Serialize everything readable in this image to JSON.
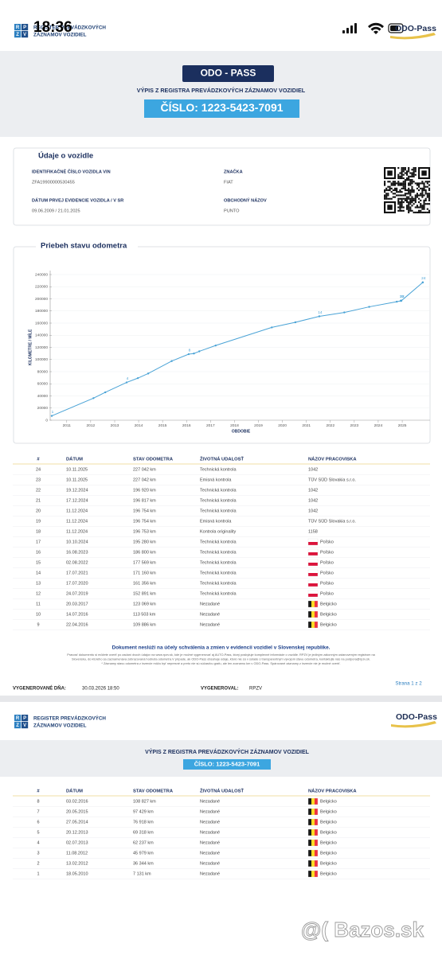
{
  "status_bar": {
    "time": "18:36"
  },
  "header": {
    "logo_letters": [
      "R",
      "P",
      "Z",
      "V"
    ],
    "logo_text": [
      "REGISTER PREVÁDZKOVÝCH",
      "ZÁZNAMOV VOZIDIEL"
    ],
    "brand": "ODO-Pass"
  },
  "banner": {
    "title": "ODO - PASS",
    "subtitle": "VÝPIS Z REGISTRA PREVÁDZKOVÝCH ZÁZNAMOV VOZIDIEL",
    "number": "ČÍSLO: 1223-5423-7091"
  },
  "vehicle": {
    "heading": "Údaje o vozidle",
    "fields": [
      {
        "label": "IDENTIFIKAČNÉ ČÍSLO VOZIDLA VIN",
        "value": "ZFA19900000530455"
      },
      {
        "label": "ZNAČKA",
        "value": "FIAT"
      },
      {
        "label": "DÁTUM PRVEJ EVIDENCIE VOZIDLA / V SR",
        "value": "09.06.2009 / 21.01.2025"
      },
      {
        "label": "OBCHODNÝ NÁZOV",
        "value": "PUNTO"
      }
    ]
  },
  "chart_data": {
    "type": "line",
    "title": "Priebeh stavu odometra",
    "y_label": "KILOMETRE / MÍLE",
    "x_label": "OBDOBIE",
    "color": "#4aa3d6",
    "grid": true,
    "x": [
      "2010-05-18",
      "2012-02-13",
      "2012-08-11",
      "2013-07-02",
      "2013-12-20",
      "2014-05-27",
      "2015-05-20",
      "2016-02-03",
      "2016-04-22",
      "2016-07-14",
      "2017-03-20",
      "2019-07-24",
      "2020-07-17",
      "2021-07-17",
      "2022-08-02",
      "2023-08-16",
      "2024-10-10",
      "2024-12-11",
      "2024-12-11",
      "2024-12-11",
      "2024-12-17",
      "2024-12-19",
      "2025-11-10",
      "2025-11-10"
    ],
    "values": [
      7131,
      36344,
      45979,
      62237,
      69318,
      76918,
      97429,
      108827,
      109886,
      113503,
      123069,
      152891,
      161356,
      171160,
      177569,
      186800,
      195280,
      196753,
      196754,
      196754,
      196817,
      196920,
      227042,
      227042
    ],
    "point_labels": [
      "1",
      null,
      null,
      "4",
      null,
      null,
      null,
      "8",
      null,
      null,
      null,
      null,
      null,
      "14",
      null,
      null,
      null,
      null,
      "19",
      null,
      null,
      "22",
      null,
      "24"
    ],
    "xlim": [
      "2010-05-18",
      "2026-03-01"
    ],
    "xticks": [
      {
        "value": "2011-01-01",
        "label": "2011"
      },
      {
        "value": "2012-01-01",
        "label": "2012"
      },
      {
        "value": "2013-01-01",
        "label": "2013"
      },
      {
        "value": "2014-01-01",
        "label": "2014"
      },
      {
        "value": "2015-01-01",
        "label": "2015"
      },
      {
        "value": "2016-01-01",
        "label": "2016"
      },
      {
        "value": "2017-01-01",
        "label": "2017"
      },
      {
        "value": "2018-01-01",
        "label": "2018"
      },
      {
        "value": "2019-01-01",
        "label": "2019"
      },
      {
        "value": "2020-01-01",
        "label": "2020"
      },
      {
        "value": "2021-01-01",
        "label": "2021"
      },
      {
        "value": "2022-01-01",
        "label": "2022"
      },
      {
        "value": "2023-01-01",
        "label": "2023"
      },
      {
        "value": "2024-01-01",
        "label": "2024"
      },
      {
        "value": "2025-01-01",
        "label": "2025"
      }
    ],
    "ylim": [
      0,
      240000
    ],
    "yticks": [
      0,
      20000,
      40000,
      60000,
      80000,
      100000,
      120000,
      140000,
      160000,
      180000,
      200000,
      220000,
      240000
    ]
  },
  "table": {
    "columns": [
      "#",
      "DÁTUM",
      "STAV ODOMETRA",
      "ŽIVOTNÁ UDALOSŤ",
      "NÁZOV PRACOVISKA"
    ],
    "rows": [
      {
        "cells": [
          "24",
          "10.11.2025",
          "227 042 km",
          "Technická kontrola",
          "1042"
        ]
      },
      {
        "cells": [
          "23",
          "10.11.2025",
          "227 042 km",
          "Emisná kontrola",
          "TÜV SÜD Slovakia s.r.o."
        ]
      },
      {
        "cells": [
          "22",
          "19.12.2024",
          "196 920 km",
          "Technická kontrola",
          "1042"
        ]
      },
      {
        "cells": [
          "21",
          "17.12.2024",
          "196 817 km",
          "Technická kontrola",
          "1042"
        ]
      },
      {
        "cells": [
          "20",
          "11.12.2024",
          "196 754 km",
          "Technická kontrola",
          "1042"
        ]
      },
      {
        "cells": [
          "19",
          "11.12.2024",
          "196 754 km",
          "Emisná kontrola",
          "TÜV SÜD Slovakia s.r.o."
        ]
      },
      {
        "cells": [
          "18",
          "11.12.2024",
          "196 753 km",
          "Kontrola originality",
          "1158"
        ]
      },
      {
        "cells": [
          "17",
          "10.10.2024",
          "195 280 km",
          "Technická kontrola",
          "Poľsko"
        ],
        "flag": {
          "stripes": "horizontal",
          "colors": [
            "#ffffff",
            "#dc143c"
          ]
        }
      },
      {
        "cells": [
          "16",
          "16.08.2023",
          "186 800 km",
          "Technická kontrola",
          "Poľsko"
        ],
        "flag": {
          "stripes": "horizontal",
          "colors": [
            "#ffffff",
            "#dc143c"
          ]
        }
      },
      {
        "cells": [
          "15",
          "02.08.2022",
          "177 569 km",
          "Technická kontrola",
          "Poľsko"
        ],
        "flag": {
          "stripes": "horizontal",
          "colors": [
            "#ffffff",
            "#dc143c"
          ]
        }
      },
      {
        "cells": [
          "14",
          "17.07.2021",
          "171 160 km",
          "Technická kontrola",
          "Poľsko"
        ],
        "flag": {
          "stripes": "horizontal",
          "colors": [
            "#ffffff",
            "#dc143c"
          ]
        }
      },
      {
        "cells": [
          "13",
          "17.07.2020",
          "161 356 km",
          "Technická kontrola",
          "Poľsko"
        ],
        "flag": {
          "stripes": "horizontal",
          "colors": [
            "#ffffff",
            "#dc143c"
          ]
        }
      },
      {
        "cells": [
          "12",
          "24.07.2019",
          "152 891 km",
          "Technická kontrola",
          "Poľsko"
        ],
        "flag": {
          "stripes": "horizontal",
          "colors": [
            "#ffffff",
            "#dc143c"
          ]
        }
      },
      {
        "cells": [
          "11",
          "20.03.2017",
          "123 069 km",
          "Nezadané",
          "Belgicko"
        ],
        "flag": {
          "stripes": "vertical",
          "colors": [
            "#1a1a1a",
            "#fdda24",
            "#ef3340"
          ]
        }
      },
      {
        "cells": [
          "10",
          "14.07.2016",
          "113 503 km",
          "Nezadané",
          "Belgicko"
        ],
        "flag": {
          "stripes": "vertical",
          "colors": [
            "#1a1a1a",
            "#fdda24",
            "#ef3340"
          ]
        }
      },
      {
        "cells": [
          "9",
          "22.04.2016",
          "109 886 km",
          "Nezadané",
          "Belgicko"
        ],
        "flag": {
          "stripes": "vertical",
          "colors": [
            "#1a1a1a",
            "#fdda24",
            "#ef3340"
          ]
        }
      }
    ]
  },
  "notes": {
    "main": "Dokument neslúži na účely schválenia a zmien v evidencii vozidiel v Slovenskej republike.",
    "disclaimer": [
      "Pravosť dokumentu si môžete overiť po zadaní dvoch údajov na www.rpzv.sk, kde je možné vygenerovať aj AUTO-Pass, ktorý poskytuje komplexné informácie o vozidle. RPZV je jediným zákonným ustanoveným registrom na",
      "Slovensku, do ktorého sa zaznamenáva zobrazovaná hodnota odometra.V prípade, ak ODO-Pass obsahuje údaje, ktoré nie sú v súlade s transparentným vývojom stavu odometra, kontaktujte nás na podpora@rpzv.sk.",
      "* Záznamy stavu odometra z inzercie môžu byť nepresné a preto nie sú súčasťou grafu, ale len zoznamu km v ODO-Pass. Spárované záznamy z inzercie nie je možné overiť."
    ]
  },
  "footer": {
    "generated_label": "VYGENEROVANÉ DŇA:",
    "generated_date": "30.03.2026 18:50",
    "by_label": "VYGENEROVAL:",
    "by": "RPZV",
    "page": "Strana 1 z 2"
  },
  "page2": {
    "header": {
      "logo_letters": [
        "R",
        "P",
        "Z",
        "V"
      ],
      "logo_text": [
        "REGISTER PREVÁDZKOVÝCH",
        "ZÁZNAMOV VOZIDIEL"
      ],
      "brand": "ODO-Pass"
    },
    "title": "VÝPIS Z REGISTRA PREVÁDZKOVÝCH ZÁZNAMOV VOZIDIEL",
    "number": "ČÍSLO: 1223-5423-7091",
    "table": {
      "columns": [
        "#",
        "DÁTUM",
        "STAV ODOMETRA",
        "ŽIVOTNÁ UDALOSŤ",
        "NÁZOV PRACOVISKA"
      ],
      "rows": [
        {
          "cells": [
            "8",
            "03.02.2016",
            "108 827 km",
            "Nezadané",
            "Belgicko"
          ],
          "flag": {
            "stripes": "vertical",
            "colors": [
              "#1a1a1a",
              "#fdda24",
              "#ef3340"
            ]
          }
        },
        {
          "cells": [
            "7",
            "20.05.2015",
            "97 429 km",
            "Nezadané",
            "Belgicko"
          ],
          "flag": {
            "stripes": "vertical",
            "colors": [
              "#1a1a1a",
              "#fdda24",
              "#ef3340"
            ]
          }
        },
        {
          "cells": [
            "6",
            "27.05.2014",
            "76 918 km",
            "Nezadané",
            "Belgicko"
          ],
          "flag": {
            "stripes": "vertical",
            "colors": [
              "#1a1a1a",
              "#fdda24",
              "#ef3340"
            ]
          }
        },
        {
          "cells": [
            "5",
            "20.12.2013",
            "69 318 km",
            "Nezadané",
            "Belgicko"
          ],
          "flag": {
            "stripes": "vertical",
            "colors": [
              "#1a1a1a",
              "#fdda24",
              "#ef3340"
            ]
          }
        },
        {
          "cells": [
            "4",
            "02.07.2013",
            "62 237 km",
            "Nezadané",
            "Belgicko"
          ],
          "flag": {
            "stripes": "vertical",
            "colors": [
              "#1a1a1a",
              "#fdda24",
              "#ef3340"
            ]
          }
        },
        {
          "cells": [
            "3",
            "11.08.2012",
            "45 979 km",
            "Nezadané",
            "Belgicko"
          ],
          "flag": {
            "stripes": "vertical",
            "colors": [
              "#1a1a1a",
              "#fdda24",
              "#ef3340"
            ]
          }
        },
        {
          "cells": [
            "2",
            "13.02.2012",
            "36 344 km",
            "Nezadané",
            "Belgicko"
          ],
          "flag": {
            "stripes": "vertical",
            "colors": [
              "#1a1a1a",
              "#fdda24",
              "#ef3340"
            ]
          }
        },
        {
          "cells": [
            "1",
            "18.05.2010",
            "7 131 km",
            "Nezadané",
            "Belgicko"
          ],
          "flag": {
            "stripes": "vertical",
            "colors": [
              "#1a1a1a",
              "#fdda24",
              "#ef3340"
            ]
          }
        }
      ]
    }
  },
  "watermark": "@( Bazos.sk"
}
